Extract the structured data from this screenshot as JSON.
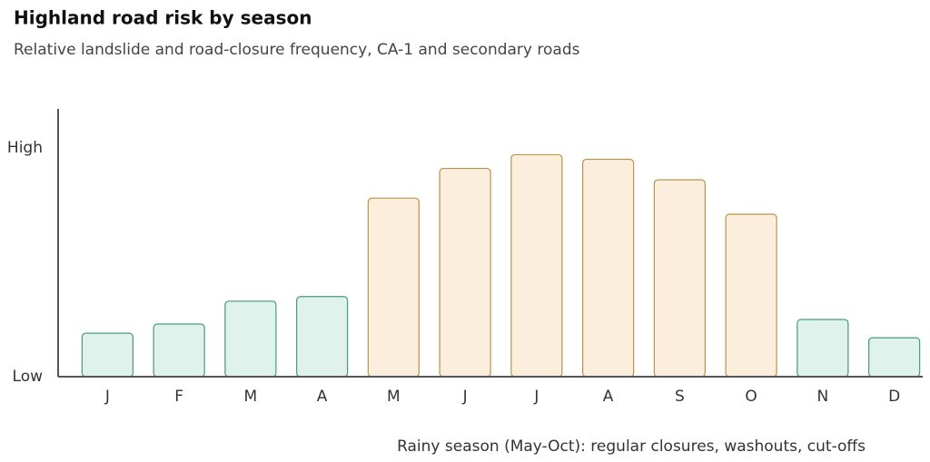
{
  "chart_data": {
    "type": "bar",
    "title": "Highland road risk by season",
    "subtitle": "Relative landslide and road-closure frequency, CA-1 and secondary roads",
    "annotation": "Rainy season (May-Oct): regular closures, washouts, cut-offs",
    "categories": [
      "J",
      "F",
      "M",
      "A",
      "M",
      "J",
      "J",
      "A",
      "S",
      "O",
      "N",
      "D"
    ],
    "values": [
      19,
      23,
      33,
      35,
      78,
      91,
      97,
      95,
      86,
      71,
      25,
      17
    ],
    "colors": [
      "#dff3ec",
      "#dff3ec",
      "#dff3ec",
      "#dff3ec",
      "#fbeedd",
      "#fbeedd",
      "#fbeedd",
      "#fbeedd",
      "#fbeedd",
      "#fbeedd",
      "#dff3ec",
      "#dff3ec"
    ],
    "edge_colors": [
      "#4a9a78",
      "#4a9a78",
      "#4a9a78",
      "#4a9a78",
      "#b8944a",
      "#b8944a",
      "#b8944a",
      "#b8944a",
      "#b8944a",
      "#b8944a",
      "#4a9a78",
      "#4a9a78"
    ],
    "ylim": [
      0,
      117
    ],
    "yticks": [
      {
        "value": 0,
        "label": "Low"
      },
      {
        "value": 100,
        "label": "High"
      }
    ],
    "grid": false
  }
}
